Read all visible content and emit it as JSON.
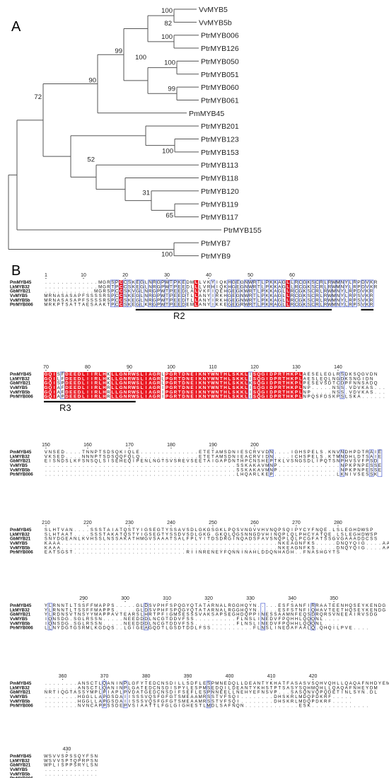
{
  "panel_a": {
    "label": "A",
    "taxa": [
      "VvMYB5",
      "VvMYB5b",
      "PtrMYB006",
      "PtrMYB126",
      "PtrMYB050",
      "PtrMYB051",
      "PtrMYB060",
      "PtrMYB061",
      "PmMYB45",
      "PtrMYB201",
      "PtrMYB123",
      "PtrMYB153",
      "PtrMYB113",
      "PtrMYB118",
      "PtrMYB120",
      "PtrMYB119",
      "PtrMYB117",
      "PtrMYB155",
      "PtrMYB7",
      "PtrMYB9"
    ],
    "bootstrap": [
      "100",
      "82",
      "100",
      "100",
      "100",
      "99",
      "90",
      "99",
      "100",
      "52",
      "31",
      "65",
      "72",
      "100"
    ]
  },
  "panel_b": {
    "label": "B",
    "names": [
      "PmMYB45",
      "LkMYB32",
      "GbMYB21",
      "VvMYB5",
      "VvMYB5b",
      "PtrMYB006"
    ],
    "blocks": [
      {
        "start": 1,
        "ticks": [
          "1",
          "10",
          "20",
          "30",
          "40",
          "50",
          "60"
        ],
        "seqs": [
          ".............MGRSPCCSKEGLNRGPWTPKEDMLLVKYIQKHGEGNWRTLPKKAGLLRCGKSCRLRWMNYLRPDVKR",
          ".............MGRTPCCSKEGLNRGPWTPEEDLLLVRHIQKHGEGNWRTLPKKAGLLRCGKSCRLRWMNYLRPDVKR",
          "............MGRSPCCSKVGLNRGPWTPEEDLALVKFIQEHGEGKWRTLPKKAGLLRCGKSCRLRWMNYLRPDVKR",
          "MRNASASAPFSSSSRSPCCSKEGLNRGPWTPEEDTLLANYIRKHGEGNWRTLPKKAGLLRCGKSCRLRWMNYLRPSVKR",
          "MRNASASAPFSSSSRSPCCSKEGLNRGPWTPEEDTLLANYIRKHGEGNWRTLPKKAGLLRCGKSCRLRWMNYLRPSVKR",
          "MRKPTSATTAESAAKTPCCSKEGLKRGPWTPEEDEMLANYIKKEGEGRWRTLPKRAGLLRCGKSCRLRWMNYLRPSVKR"
        ]
      },
      {
        "start": 70,
        "ticks": [
          "70",
          "80",
          "90",
          "100",
          "110",
          "120",
          "130",
          "140"
        ],
        "seqs": [
          "GQISFDEEDLIIRLHKLLGNRWSLIAGRLPGRTDNEIKNYWNTHLSKKLISQGIDPRTHKPLAESELEGLRSDKSQGVDN",
          "GQILFDEEDLIIRLHKLLGNRWSLIAGRLPGRTDNEIKNYWNTHLSKKLISQGIDPRTHKPLAESLEQLNGDKSNGIDN",
          "GQISPDEEDLIIRLHKLLGNRWSLIAGRLPGRTDNEIKNYWNTHLSKKLKSQGIDPRTHKPLPESEVSDTCDPFNNSADQ",
          "GQIAFDEEDLIIRLHRLLGNRWSLIAGRIPGRTDNEIKNYWNTHLSKKLISQGIDPRTHKPLNP.....NSS.VDVKAS...",
          "GQIAFDEEDLIIRLHRLLGNRWSLIAGRIPGRTDNEIKNYWNTHLSKKLISQGIDPRTHKPLNP.....NSS.VDVKAS...",
          "GQIAPDEEDLIIRLHRLLGNRWSLIAGRIPGRTDNEIKNYWNTHLSKKLISQGIDPRTHKPLNPQSFDSKPSLSKA......"
        ]
      },
      {
        "start": 150,
        "ticks": [
          "150",
          "160",
          "170",
          "180",
          "190",
          "200"
        ],
        "seqs": [
          "VNSED....TNNPTSDSQKIQLE..............ETETAMSDNIESCRVVDN....IGHSPELS.KNVNDHPDTRAIE",
          "VKSED....NNNPTSDSQQFQLQ..............ETETAMSDNIEACRVIDN....ICHSPELS.KTMNDHLDTSAIE",
          "EISNDSLKFSNSQLSISEHEQIPENLNGTSVSREVSEETAIGAPDNTHPCNSHEPTKLVSNGSDLIPQTSNPHVSVFPSD",
          "..............................................SSKAKAVMNP...............NPKPNPESSE",
          "..............................................SSKAKAVMNP...............NPKPNPESSE",
          "..............................................LHQARLKEP...............LKNIVSESSK"
        ]
      },
      {
        "start": 210,
        "ticks": [
          "210",
          "220",
          "230",
          "240",
          "250",
          "260",
          "270",
          "280"
        ],
        "seqs": [
          "SLHTVAN....SSSTAIATQSTYIGSEGTYSSAVSDLGKGSGKLPQSVNGVVHVNQPSQIPYCYFNQE.LSLEGHDWSP",
          "SLHTAAT....SSSTAKATQSTYIGSEGTYSSDVSDLGKG.GKQLQGSNNGDVHINQPLQLPHCYATQE.LSLEGHDWSP",
          "SNYDGEANLKVHSSLNSSAKATHMGVSAAATSALFPLYITDSDRGINQADSFAVSNQPLQLPCGFATSSGVGAAADDCSS",
          "KAAA....................................................NKEAGNFKS.....DNQYQIG....AAGNDGSAN",
          "KAAA....................................................NKEAGNFKS.....DNQYQIG....AAGNDGSAN",
          "EATSGST...........................RIINRENEYFQNNINAHLDDQNHADH..FNASHGYTS"
        ]
      },
      {
        "start": 281,
        "ticks": [
          "290",
          "300",
          "310",
          "320",
          "330",
          "340",
          "350"
        ],
        "seqs": [
          "YLRNNTLTSSFFMAPPS.....GLDSVPHFSPQGYQTATARNALRGGHQYN.....ESFSANFIRRAATEENHQSEYKENDG",
          "YLRNNTLTSSFFMAPPS.....GLDSVPHFSPQGYQTATARNALRGGHQYN.....ESFSTNFIQHAVTEETHQSEYKENDG",
          "YLRDNSVTNSYYMAPPAVTEARSLHRTPFIGMSESSSVAKSAPSEGHDQPPINESSAAMNFEQSDRQRSVNEEAIRVSDG",
          "IQNSDG.SGLRSSN.....NEEDDDLNCGTDDVFSS..........FLNSLINEDVFPQHHLQQQNL....",
          "IQNSDG.SGLRSSN.....NEEDDDLNCGTDDVFSS..........FLNSLINEDVFPQHHLQQQNL....",
          "LLNYDGTGSRMLKGDQS..LGIGEAGQDTLGSDTDDLFSS..........FLNSLINEDAFAALQ.QHQILPVE...."
        ]
      },
      {
        "start": 356,
        "ticks": [
          "360",
          "370",
          "380",
          "390",
          "400",
          "410",
          "420"
        ],
        "seqs": [
          "........ANSCTLQANINPLGFYTEDCNSDILLSDFLESPMNEDQLLDEANTYKHATFASASVSQHVQHLLQAQAFNHDYEM",
          "........ANSCTLQANINPLGATEDCNSDISPYLESPMSEDQILDEANTYKHSTPTSASYSQHMQHLLQAQAFNHEYDM",
          "NRTIQGTASSYMPLPIAPLPVDATGEDCNSDIFSEFLESPNNEELLNEHYEFNSVP...SASQNVQPQDETINLSYN.DL",
          "........HGGLLAPGSDAIISSSVQSFGFGTSMEAAMRSSTVFSQI........DHSKRLMDQPDKRF.....",
          "........HGGLLAPGSDAIISSSVQSFGFGTSMEAAMRSSTVFSQI........DHSKRLMDQPDKRF.....",
          "........NVNCAPPSSDEPVSIAATTLFGLGIGHESTLMDLSAFNQN.............ESK.............."
        ]
      },
      {
        "start": 425,
        "ticks": [
          "430"
        ],
        "seqs": [
          "WSVVSPSSQYFSN",
          "WSVVSPTQPRPSN",
          "WPLISPPSRYLSN",
          ".............",
          ".............",
          "............."
        ]
      }
    ],
    "motifs": [
      {
        "label": "R2"
      },
      {
        "label": "R3"
      }
    ]
  }
}
